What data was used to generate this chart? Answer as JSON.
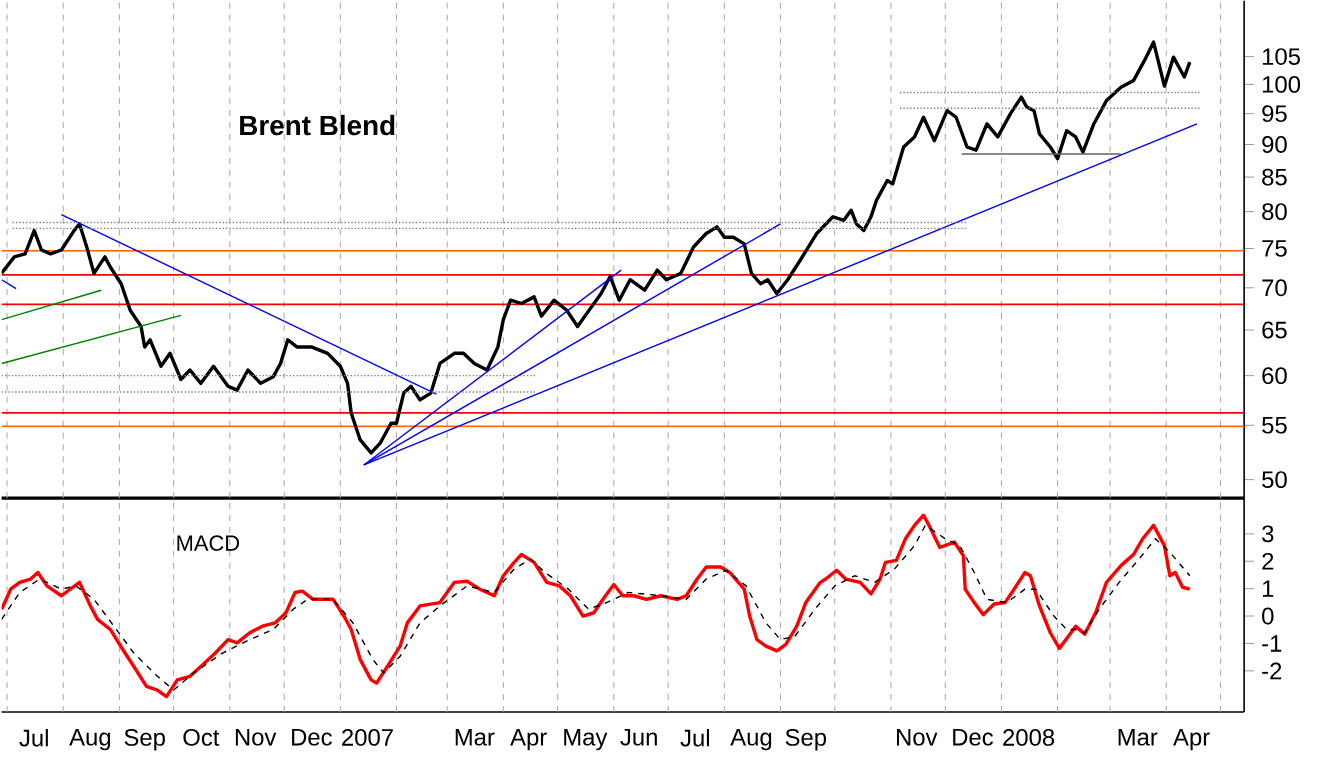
{
  "chart_data": [
    {
      "type": "line",
      "title": "Brent Blend",
      "log": "y",
      "grid": "x",
      "tick_labels": "y",
      "xlim": [
        "2006-06-28",
        "2008-05-14"
      ],
      "ylim": [
        48.4,
        115.8
      ],
      "xticks": [
        {
          "value": "2006-07-01",
          "label": null
        },
        {
          "value": "2006-08-01",
          "label": null
        },
        {
          "value": "2006-09-01",
          "label": null
        },
        {
          "value": "2006-10-01",
          "label": null
        },
        {
          "value": "2006-11-01",
          "label": null
        },
        {
          "value": "2006-12-01",
          "label": null
        },
        {
          "value": "2007-01-01",
          "label": null
        },
        {
          "value": "2007-02-01",
          "label": null
        },
        {
          "value": "2007-03-01",
          "label": null
        },
        {
          "value": "2007-04-01",
          "label": null
        },
        {
          "value": "2007-05-01",
          "label": null
        },
        {
          "value": "2007-06-01",
          "label": null
        },
        {
          "value": "2007-07-01",
          "label": null
        },
        {
          "value": "2007-08-01",
          "label": null
        },
        {
          "value": "2007-09-01",
          "label": null
        },
        {
          "value": "2007-10-01",
          "label": null
        },
        {
          "value": "2007-11-01",
          "label": null
        },
        {
          "value": "2007-12-01",
          "label": null
        },
        {
          "value": "2008-01-01",
          "label": null
        },
        {
          "value": "2008-02-01",
          "label": null
        },
        {
          "value": "2008-03-01",
          "label": null
        },
        {
          "value": "2008-04-01",
          "label": null
        },
        {
          "value": "2008-05-01",
          "label": null
        }
      ],
      "yticks": [
        50,
        55,
        60,
        65,
        70,
        75,
        80,
        85,
        90,
        95,
        100,
        105
      ],
      "series": [
        {
          "color": "#000000",
          "x": [
            "2006-06-28",
            "2006-07-05",
            "2006-07-11",
            "2006-07-16",
            "2006-07-20",
            "2006-07-25",
            "2006-07-31",
            "2006-08-07",
            "2006-08-10",
            "2006-08-14",
            "2006-08-18",
            "2006-08-24",
            "2006-08-27",
            "2006-09-02",
            "2006-09-07",
            "2006-09-13",
            "2006-09-15",
            "2006-09-18",
            "2006-09-24",
            "2006-09-29",
            "2006-10-05",
            "2006-10-10",
            "2006-10-16",
            "2006-10-23",
            "2006-10-31",
            "2006-11-05",
            "2006-11-11",
            "2006-11-18",
            "2006-11-25",
            "2006-11-29",
            "2006-12-03",
            "2006-12-08",
            "2006-12-16",
            "2006-12-25",
            "2007-01-01",
            "2007-01-05",
            "2007-01-07",
            "2007-01-12",
            "2007-01-18",
            "2007-01-23",
            "2007-01-29",
            "2007-02-01",
            "2007-02-05",
            "2007-02-09",
            "2007-02-14",
            "2007-02-20",
            "2007-02-25",
            "2007-03-05",
            "2007-03-10",
            "2007-03-16",
            "2007-03-23",
            "2007-03-29",
            "2007-04-01",
            "2007-04-05",
            "2007-04-11",
            "2007-04-18",
            "2007-04-22",
            "2007-04-29",
            "2007-05-06",
            "2007-05-12",
            "2007-05-17",
            "2007-05-25",
            "2007-05-30",
            "2007-06-04",
            "2007-06-10",
            "2007-06-18",
            "2007-06-25",
            "2007-06-30",
            "2007-07-08",
            "2007-07-15",
            "2007-07-22",
            "2007-07-28",
            "2007-08-01",
            "2007-08-06",
            "2007-08-12",
            "2007-08-16",
            "2007-08-21",
            "2007-08-25",
            "2007-08-30",
            "2007-09-05",
            "2007-09-12",
            "2007-09-21",
            "2007-09-30",
            "2007-10-06",
            "2007-10-10",
            "2007-10-13",
            "2007-10-17",
            "2007-10-21",
            "2007-10-24",
            "2007-10-30",
            "2007-11-02",
            "2007-11-08",
            "2007-11-14",
            "2007-11-19",
            "2007-11-25",
            "2007-12-02",
            "2007-12-07",
            "2007-12-13",
            "2007-12-18",
            "2007-12-24",
            "2007-12-30",
            "2008-01-06",
            "2008-01-12",
            "2008-01-15",
            "2008-01-19",
            "2008-01-22",
            "2008-01-28",
            "2008-02-01",
            "2008-02-06",
            "2008-02-11",
            "2008-02-15",
            "2008-02-21",
            "2008-02-28",
            "2008-03-07",
            "2008-03-14",
            "2008-03-20",
            "2008-03-25",
            "2008-03-31",
            "2008-04-05",
            "2008-04-11",
            "2008-04-14"
          ],
          "values": [
            71.8,
            73.9,
            74.3,
            77.4,
            74.8,
            74.3,
            74.8,
            77.4,
            78.3,
            75.2,
            71.8,
            73.9,
            72.6,
            70.5,
            67.3,
            65.4,
            63.1,
            63.9,
            61.0,
            62.4,
            59.6,
            60.6,
            59.2,
            61.0,
            58.9,
            58.5,
            60.6,
            59.2,
            59.9,
            61.3,
            63.9,
            63.1,
            63.1,
            62.4,
            61.0,
            59.2,
            56.2,
            53.6,
            52.4,
            53.3,
            55.2,
            55.2,
            58.2,
            58.9,
            57.5,
            58.2,
            61.3,
            62.4,
            62.4,
            61.3,
            60.6,
            63.1,
            66.2,
            68.5,
            68.1,
            68.9,
            66.6,
            68.5,
            67.3,
            65.4,
            66.9,
            69.3,
            71.4,
            68.5,
            71.0,
            69.7,
            72.2,
            71.0,
            71.8,
            75.2,
            77.0,
            77.9,
            76.5,
            76.5,
            75.6,
            71.8,
            70.5,
            71.0,
            69.3,
            71.0,
            73.5,
            77.0,
            79.3,
            78.8,
            80.2,
            78.3,
            77.4,
            79.3,
            81.6,
            84.5,
            84.0,
            89.6,
            91.2,
            94.4,
            90.6,
            95.5,
            94.4,
            89.6,
            89.1,
            93.3,
            91.2,
            95.0,
            97.8,
            96.1,
            95.5,
            91.7,
            89.6,
            87.8,
            92.2,
            91.2,
            88.8,
            93.3,
            97.2,
            99.5,
            100.7,
            104.3,
            107.7,
            99.7,
            104.9,
            101.3,
            104.0
          ]
        },
        {
          "color": "#0000ff",
          "x": [
            "2006-07-31",
            "2007-02-23"
          ],
          "values": [
            79.6,
            58.1
          ]
        },
        {
          "color": "#0000ff",
          "x": [
            "2006-06-28",
            "2006-07-06"
          ],
          "values": [
            71.0,
            69.9
          ]
        },
        {
          "color": "#0000ff",
          "x": [
            "2007-01-14",
            "2007-06-05"
          ],
          "values": [
            51.3,
            72.2
          ]
        },
        {
          "color": "#0000ff",
          "x": [
            "2007-01-14",
            "2007-09-01"
          ],
          "values": [
            51.3,
            78.3
          ]
        },
        {
          "color": "#0000ff",
          "x": [
            "2007-01-14",
            "2008-04-18"
          ],
          "values": [
            51.3,
            93.3
          ]
        },
        {
          "color": "#008000",
          "x": [
            "2006-06-28",
            "2006-08-22"
          ],
          "values": [
            66.2,
            69.7
          ]
        },
        {
          "color": "#008000",
          "x": [
            "2006-06-28",
            "2006-10-05"
          ],
          "values": [
            61.3,
            66.7
          ]
        },
        {
          "color": "#808080",
          "line_style": "dotted",
          "x": [
            "2006-07-04",
            "2007-12-13"
          ],
          "values": [
            77.7,
            77.7
          ]
        },
        {
          "color": "#808080",
          "line_style": "dotted",
          "x": [
            "2006-07-04",
            "2007-12-13"
          ],
          "values": [
            78.5,
            78.5
          ]
        },
        {
          "color": "#808080",
          "line_style": "dotted",
          "x": [
            "2006-06-28",
            "2007-04-19"
          ],
          "values": [
            58.3,
            58.3
          ]
        },
        {
          "color": "#808080",
          "line_style": "dotted",
          "x": [
            "2006-06-28",
            "2007-04-19"
          ],
          "values": [
            60.0,
            60.0
          ]
        },
        {
          "color": "#808080",
          "line_style": "dotted",
          "x": [
            "2007-11-06",
            "2008-04-20"
          ],
          "values": [
            95.9,
            95.9
          ]
        },
        {
          "color": "#808080",
          "line_style": "dotted",
          "x": [
            "2007-11-06",
            "2008-04-20"
          ],
          "values": [
            98.6,
            98.6
          ]
        },
        {
          "color": "#606060",
          "x": [
            "2007-12-10",
            "2008-03-07"
          ],
          "values": [
            88.5,
            88.5
          ]
        }
      ],
      "ref_lines": [
        {
          "axis": "y",
          "value": 74.7,
          "color": "#ff6600"
        },
        {
          "axis": "y",
          "value": 71.6,
          "color": "#ff0000"
        },
        {
          "axis": "y",
          "value": 68.0,
          "color": "#ff0000"
        },
        {
          "axis": "y",
          "value": 56.2,
          "color": "#ff0000"
        },
        {
          "axis": "y",
          "value": 54.9,
          "color": "#ff6600"
        }
      ]
    },
    {
      "type": "line",
      "title": "MACD",
      "grid": "x",
      "xlim": [
        "2006-06-28",
        "2008-05-14"
      ],
      "ylim": [
        -3.5,
        4.3
      ],
      "xticks": [
        {
          "value": "2006-07-01",
          "label": null
        },
        {
          "value": "2006-07-16",
          "label": "Jul"
        },
        {
          "value": "2006-08-01",
          "label": null
        },
        {
          "value": "2006-08-16",
          "label": "Aug"
        },
        {
          "value": "2006-09-01",
          "label": null
        },
        {
          "value": "2006-09-15",
          "label": "Sep"
        },
        {
          "value": "2006-10-01",
          "label": null
        },
        {
          "value": "2006-10-16",
          "label": "Oct"
        },
        {
          "value": "2006-11-01",
          "label": null
        },
        {
          "value": "2006-11-15",
          "label": "Nov"
        },
        {
          "value": "2006-12-01",
          "label": null
        },
        {
          "value": "2006-12-16",
          "label": "Dec"
        },
        {
          "value": "2007-01-01",
          "label": null
        },
        {
          "value": "2007-01-16",
          "label": "2007"
        },
        {
          "value": "2007-02-01",
          "label": null
        },
        {
          "value": "2007-03-01",
          "label": null
        },
        {
          "value": "2007-03-16",
          "label": "Mar"
        },
        {
          "value": "2007-04-01",
          "label": null
        },
        {
          "value": "2007-04-15",
          "label": "Apr"
        },
        {
          "value": "2007-05-01",
          "label": null
        },
        {
          "value": "2007-05-16",
          "label": "May"
        },
        {
          "value": "2007-06-01",
          "label": null
        },
        {
          "value": "2007-06-15",
          "label": "Jun"
        },
        {
          "value": "2007-07-01",
          "label": null
        },
        {
          "value": "2007-07-16",
          "label": "Jul"
        },
        {
          "value": "2007-08-01",
          "label": null
        },
        {
          "value": "2007-08-16",
          "label": "Aug"
        },
        {
          "value": "2007-09-01",
          "label": null
        },
        {
          "value": "2007-09-15",
          "label": "Sep"
        },
        {
          "value": "2007-10-01",
          "label": null
        },
        {
          "value": "2007-11-01",
          "label": null
        },
        {
          "value": "2007-11-15",
          "label": "Nov"
        },
        {
          "value": "2007-12-01",
          "label": null
        },
        {
          "value": "2007-12-16",
          "label": "Dec"
        },
        {
          "value": "2008-01-01",
          "label": null
        },
        {
          "value": "2008-01-16",
          "label": "2008"
        },
        {
          "value": "2008-02-01",
          "label": null
        },
        {
          "value": "2008-03-01",
          "label": null
        },
        {
          "value": "2008-03-16",
          "label": "Mar"
        },
        {
          "value": "2008-04-01",
          "label": null
        },
        {
          "value": "2008-04-15",
          "label": "Apr"
        },
        {
          "value": "2008-05-01",
          "label": null
        }
      ],
      "yticks": [
        -2,
        -1,
        0,
        1,
        2,
        3
      ],
      "series": [
        {
          "color": "#ff0000",
          "x": [
            "2006-06-28",
            "2006-07-03",
            "2006-07-08",
            "2006-07-14",
            "2006-07-18",
            "2006-07-23",
            "2006-07-31",
            "2006-08-10",
            "2006-08-16",
            "2006-08-20",
            "2006-08-27",
            "2006-09-03",
            "2006-09-09",
            "2006-09-16",
            "2006-09-22",
            "2006-09-27",
            "2006-10-03",
            "2006-10-10",
            "2006-10-16",
            "2006-10-24",
            "2006-10-31",
            "2006-11-05",
            "2006-11-12",
            "2006-11-19",
            "2006-11-26",
            "2006-12-02",
            "2006-12-07",
            "2006-12-11",
            "2006-12-17",
            "2006-12-28",
            "2007-01-03",
            "2007-01-07",
            "2007-01-12",
            "2007-01-18",
            "2007-01-21",
            "2007-01-27",
            "2007-02-03",
            "2007-02-07",
            "2007-02-14",
            "2007-02-25",
            "2007-03-05",
            "2007-03-12",
            "2007-03-19",
            "2007-03-27",
            "2007-04-01",
            "2007-04-07",
            "2007-04-11",
            "2007-04-18",
            "2007-04-25",
            "2007-05-02",
            "2007-05-08",
            "2007-05-15",
            "2007-05-21",
            "2007-05-26",
            "2007-06-01",
            "2007-06-06",
            "2007-06-12",
            "2007-06-19",
            "2007-06-27",
            "2007-07-06",
            "2007-07-11",
            "2007-07-17",
            "2007-07-22",
            "2007-07-30",
            "2007-08-04",
            "2007-08-12",
            "2007-08-15",
            "2007-08-19",
            "2007-08-24",
            "2007-08-30",
            "2007-09-04",
            "2007-09-10",
            "2007-09-15",
            "2007-09-23",
            "2007-09-26",
            "2007-10-02",
            "2007-10-07",
            "2007-10-15",
            "2007-10-21",
            "2007-10-26",
            "2007-10-29",
            "2007-11-04",
            "2007-11-09",
            "2007-11-14",
            "2007-11-19",
            "2007-11-22",
            "2007-11-28",
            "2007-12-06",
            "2007-12-11",
            "2007-12-12",
            "2007-12-17",
            "2007-12-22",
            "2007-12-28",
            "2008-01-03",
            "2008-01-08",
            "2008-01-14",
            "2008-01-17",
            "2008-01-22",
            "2008-01-28",
            "2008-02-02",
            "2008-02-07",
            "2008-02-11",
            "2008-02-16",
            "2008-02-22",
            "2008-02-28",
            "2008-03-07",
            "2008-03-14",
            "2008-03-19",
            "2008-03-25",
            "2008-03-31",
            "2008-04-03",
            "2008-04-06",
            "2008-04-10",
            "2008-04-14"
          ],
          "values": [
            0.25,
            0.98,
            1.23,
            1.35,
            1.59,
            1.1,
            0.74,
            1.23,
            0.37,
            -0.12,
            -0.49,
            -1.23,
            -1.84,
            -2.57,
            -2.7,
            -2.94,
            -2.33,
            -2.2,
            -1.84,
            -1.35,
            -0.86,
            -0.98,
            -0.61,
            -0.37,
            -0.25,
            0.12,
            0.86,
            0.91,
            0.61,
            0.61,
            0,
            -0.49,
            -1.59,
            -2.33,
            -2.45,
            -1.84,
            -1.1,
            -0.25,
            0.37,
            0.49,
            1.23,
            1.27,
            0.98,
            0.74,
            1.47,
            1.96,
            2.25,
            1.96,
            1.23,
            1.1,
            0.74,
            0,
            0.12,
            0.61,
            1.15,
            0.74,
            0.74,
            0.61,
            0.74,
            0.61,
            0.74,
            1.35,
            1.79,
            1.79,
            1.59,
            0.98,
            0,
            -0.86,
            -1.1,
            -1.27,
            -1.03,
            -0.37,
            0.49,
            1.23,
            1.35,
            1.67,
            1.35,
            1.23,
            0.81,
            1.35,
            1.96,
            2.03,
            2.82,
            3.31,
            3.68,
            3.31,
            2.5,
            2.7,
            2.2,
            0.98,
            0.49,
            0.05,
            0.44,
            0.49,
            0.98,
            1.59,
            1.47,
            0.37,
            -0.61,
            -1.18,
            -0.74,
            -0.37,
            -0.66,
            0.12,
            1.23,
            1.84,
            2.25,
            2.82,
            3.31,
            2.57,
            1.47,
            1.59,
            1.05,
            0.98
          ]
        },
        {
          "color": "#000000",
          "line_style": "dashed",
          "x": [
            "2006-06-28",
            "2006-07-08",
            "2006-07-19",
            "2006-07-31",
            "2006-08-08",
            "2006-08-18",
            "2006-08-29",
            "2006-09-09",
            "2006-09-22",
            "2006-10-01",
            "2006-10-12",
            "2006-10-28",
            "2006-11-12",
            "2006-11-25",
            "2006-12-06",
            "2006-12-14",
            "2006-12-28",
            "2007-01-08",
            "2007-01-19",
            "2007-01-25",
            "2007-02-03",
            "2007-02-14",
            "2007-02-25",
            "2007-03-12",
            "2007-03-27",
            "2007-04-07",
            "2007-04-16",
            "2007-04-24",
            "2007-05-07",
            "2007-05-18",
            "2007-05-28",
            "2007-06-09",
            "2007-06-27",
            "2007-07-11",
            "2007-07-22",
            "2007-08-02",
            "2007-08-13",
            "2007-08-24",
            "2007-09-01",
            "2007-09-09",
            "2007-09-20",
            "2007-10-01",
            "2007-10-12",
            "2007-10-23",
            "2007-11-03",
            "2007-11-14",
            "2007-11-20",
            "2007-12-01",
            "2007-12-09",
            "2007-12-17",
            "2007-12-24",
            "2008-01-04",
            "2008-01-14",
            "2008-01-20",
            "2008-01-30",
            "2008-02-06",
            "2008-02-11",
            "2008-02-16",
            "2008-02-24",
            "2008-03-06",
            "2008-03-17",
            "2008-03-26",
            "2008-04-03",
            "2008-04-14"
          ],
          "values": [
            -0.12,
            0.86,
            1.35,
            0.98,
            1.1,
            0.61,
            -0.37,
            -1.35,
            -2.2,
            -2.7,
            -2.08,
            -1.35,
            -0.86,
            -0.49,
            0.25,
            0.61,
            0.61,
            -0.25,
            -1.59,
            -2.08,
            -1.47,
            -0.25,
            0.37,
            1.1,
            0.86,
            1.72,
            2.08,
            1.59,
            0.98,
            0.25,
            0.49,
            0.86,
            0.74,
            0.61,
            1.35,
            1.67,
            1.1,
            -0.25,
            -0.86,
            -0.74,
            0.25,
            1.1,
            1.47,
            1.23,
            1.72,
            2.57,
            3.31,
            2.82,
            2.57,
            1.59,
            0.61,
            0.49,
            0.98,
            0.98,
            0,
            -0.49,
            -0.49,
            -0.61,
            0.25,
            1.23,
            2.08,
            2.82,
            2.33,
            1.47
          ]
        }
      ]
    }
  ]
}
